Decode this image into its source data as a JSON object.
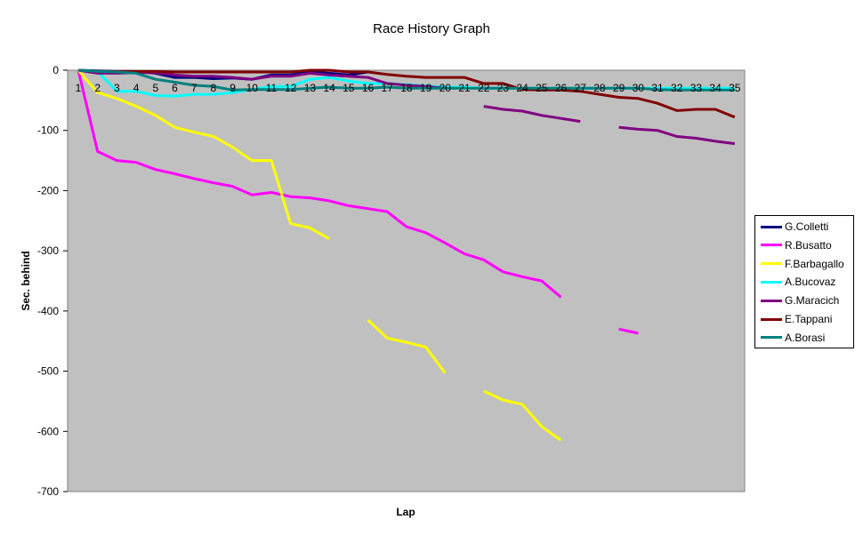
{
  "chart_data": {
    "type": "line",
    "title": "Race History Graph",
    "xlabel": "Lap",
    "ylabel": "Sec. behind",
    "ylim": [
      -700,
      0
    ],
    "yticks": [
      0,
      -100,
      -200,
      -300,
      -400,
      -500,
      -600,
      -700
    ],
    "x": [
      1,
      2,
      3,
      4,
      5,
      6,
      7,
      8,
      9,
      10,
      11,
      12,
      13,
      14,
      15,
      16,
      17,
      18,
      19,
      20,
      21,
      22,
      23,
      24,
      25,
      26,
      27,
      28,
      29,
      30,
      31,
      32,
      33,
      34,
      35
    ],
    "plot_background": "#C0C0C0",
    "grid": false,
    "legend_position": "right",
    "series": [
      {
        "name": "G.Colletti",
        "color": "#000080",
        "values": [
          0,
          -1,
          -2,
          -2,
          -5,
          -12,
          -12,
          -14,
          -13,
          -15,
          -8,
          -8,
          -3,
          -5,
          -8,
          -3,
          null,
          null,
          null,
          null,
          null,
          null,
          null,
          null,
          null,
          null,
          null,
          null,
          null,
          null,
          null,
          null,
          null,
          null,
          null
        ]
      },
      {
        "name": "R.Busatto",
        "color": "#FF00FF",
        "values": [
          0,
          -135,
          -150,
          -153,
          -165,
          -172,
          -180,
          -187,
          -193,
          -207,
          -203,
          -210,
          -212,
          -217,
          -225,
          -230,
          -235,
          -260,
          -270,
          -287,
          -305,
          -315,
          -335,
          -343,
          -350,
          -377,
          null,
          null,
          -430,
          -437,
          null,
          null,
          null,
          null,
          null
        ]
      },
      {
        "name": "F.Barbagallo",
        "color": "#FFFF00",
        "values": [
          0,
          -37,
          -47,
          -60,
          -75,
          -95,
          -103,
          -110,
          -128,
          -150,
          -150,
          -255,
          -262,
          -280,
          null,
          -415,
          -445,
          -452,
          -460,
          -503,
          null,
          -533,
          -548,
          -555,
          -592,
          -615,
          null,
          null,
          null,
          null,
          null,
          null,
          null,
          null,
          null
        ]
      },
      {
        "name": "A.Bucovaz",
        "color": "#00FFFF",
        "values": [
          0,
          -2,
          -35,
          -35,
          -42,
          -43,
          -40,
          -40,
          -37,
          -32,
          -27,
          -27,
          -15,
          -12,
          -18,
          -22,
          -22,
          -24,
          -26,
          -28,
          -28,
          -30,
          -30,
          -30,
          -30,
          -30,
          -30,
          -30,
          -30,
          -30,
          -30,
          -30,
          -30,
          -30,
          -30
        ]
      },
      {
        "name": "G.Maracich",
        "color": "#800080",
        "values": [
          0,
          -5,
          -5,
          -4,
          -4,
          -8,
          -10,
          -10,
          -12,
          -15,
          -10,
          -10,
          -5,
          -8,
          -10,
          -12,
          -22,
          -25,
          -27,
          -30,
          null,
          -60,
          -65,
          -68,
          -75,
          -80,
          -85,
          null,
          -95,
          -98,
          -100,
          -110,
          -113,
          -118,
          -122
        ]
      },
      {
        "name": "E.Tappani",
        "color": "#800000",
        "values": [
          0,
          -2,
          -2,
          -2,
          -2,
          -3,
          -3,
          -3,
          -3,
          -3,
          -3,
          -3,
          0,
          0,
          -3,
          -3,
          -7,
          -10,
          -12,
          -12,
          -12,
          -22,
          -22,
          -32,
          -33,
          -33,
          -35,
          -40,
          -45,
          -47,
          -55,
          -67,
          -65,
          -65,
          -78
        ]
      },
      {
        "name": "A.Borasi",
        "color": "#008080",
        "values": [
          0,
          -2,
          -3,
          -5,
          -15,
          -20,
          -25,
          -27,
          -33,
          -32,
          -32,
          -32,
          -30,
          -28,
          -30,
          -30,
          -28,
          -30,
          -30,
          -30,
          -30,
          -30,
          -30,
          -30,
          -30,
          -30,
          -30,
          -30,
          -30,
          -30,
          -32,
          -33,
          -33,
          -33,
          -33
        ]
      }
    ]
  }
}
